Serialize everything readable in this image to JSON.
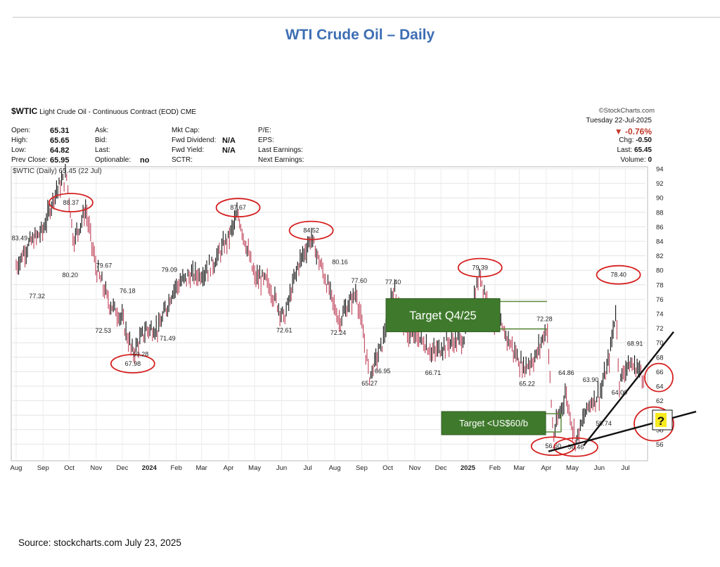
{
  "page_title": "WTI Crude Oil – Daily",
  "source": "Source: stockcharts.com July 23, 2025",
  "header": {
    "symbol": "$WTIC",
    "name": "Light Crude Oil - Continuous Contract (EOD)",
    "exchange": "CME",
    "brand": "©StockCharts.com",
    "date": "Tuesday 22-Jul-2025",
    "change_pct": "▼ -0.76%",
    "col1": [
      [
        "Open:",
        "65.31"
      ],
      [
        "High:",
        "65.65"
      ],
      [
        "Low:",
        "64.82"
      ],
      [
        "Prev Close:",
        "65.95"
      ]
    ],
    "col2": [
      [
        "Ask:",
        ""
      ],
      [
        "Bid:",
        ""
      ],
      [
        "Last:",
        ""
      ],
      [
        "Optionable:",
        "no"
      ]
    ],
    "col3": [
      [
        "Mkt Cap:",
        ""
      ],
      [
        "Fwd Dividend:",
        "N/A"
      ],
      [
        "Fwd Yield:",
        "N/A"
      ],
      [
        "SCTR:",
        ""
      ]
    ],
    "col4": [
      [
        "P/E:",
        ""
      ],
      [
        "EPS:",
        ""
      ],
      [
        "Last Earnings:",
        ""
      ],
      [
        "Next Earnings:",
        ""
      ]
    ],
    "col5": [
      [
        "Chg:",
        "-0.50"
      ],
      [
        "Last:",
        "65.45"
      ],
      [
        "Volume:",
        "0"
      ]
    ],
    "legend": "$WTIC (Daily) 65.45 (22 Jul)"
  },
  "colors": {
    "up": "#111111",
    "down": "#c0435a",
    "circle": "#d62020",
    "box_green": "#3f7a2c",
    "title_blue": "#3d6fb3",
    "question_fill": "#f7ea1f"
  },
  "chart_data": {
    "type": "line",
    "x_type": "date",
    "x": [
      "2023-08-01",
      "2023-08-15",
      "2023-09-01",
      "2023-09-15",
      "2023-09-28",
      "2023-10-06",
      "2023-10-20",
      "2023-11-01",
      "2023-11-16",
      "2023-11-30",
      "2023-12-13",
      "2023-12-28",
      "2024-01-12",
      "2024-01-29",
      "2024-02-14",
      "2024-03-01",
      "2024-03-15",
      "2024-04-01",
      "2024-04-12",
      "2024-05-01",
      "2024-05-15",
      "2024-06-04",
      "2024-06-20",
      "2024-07-05",
      "2024-07-25",
      "2024-08-06",
      "2024-08-26",
      "2024-09-10",
      "2024-09-25",
      "2024-10-07",
      "2024-10-25",
      "2024-11-08",
      "2024-11-22",
      "2024-12-09",
      "2024-12-27",
      "2025-01-15",
      "2025-01-28",
      "2025-02-14",
      "2025-03-05",
      "2025-03-20",
      "2025-04-02",
      "2025-04-09",
      "2025-04-23",
      "2025-05-05",
      "2025-05-20",
      "2025-06-02",
      "2025-06-12",
      "2025-06-20",
      "2025-06-24",
      "2025-07-03",
      "2025-07-15",
      "2025-07-22"
    ],
    "y": [
      80.5,
      83.5,
      85.5,
      90.8,
      93.0,
      84.0,
      88.4,
      80.2,
      75.5,
      73.5,
      68.5,
      71.8,
      72.0,
      77.5,
      79.1,
      79.5,
      81.0,
      84.5,
      87.7,
      79.0,
      78.5,
      73.3,
      80.7,
      84.5,
      77.5,
      73.0,
      77.0,
      65.3,
      70.0,
      77.5,
      71.0,
      70.5,
      68.5,
      70.0,
      70.5,
      79.4,
      73.5,
      71.0,
      66.5,
      68.0,
      72.3,
      57.0,
      63.0,
      56.5,
      61.5,
      63.0,
      67.5,
      74.5,
      64.5,
      67.0,
      66.5,
      65.45
    ],
    "ylim": [
      54,
      94
    ],
    "y_ticks": [
      56,
      58,
      60,
      62,
      64,
      66,
      68,
      70,
      72,
      74,
      76,
      78,
      80,
      82,
      84,
      86,
      88,
      90,
      92,
      94
    ],
    "x_tick_labels": [
      "Aug",
      "Sep",
      "Oct",
      "Nov",
      "Dec",
      "2024",
      "Feb",
      "Mar",
      "Apr",
      "May",
      "Jun",
      "Jul",
      "Aug",
      "Sep",
      "Oct",
      "Nov",
      "Dec",
      "2025",
      "Feb",
      "Mar",
      "Apr",
      "May",
      "Jun",
      "Jul"
    ],
    "x_tick_dates": [
      "2023-08-01",
      "2023-09-01",
      "2023-10-01",
      "2023-11-01",
      "2023-12-01",
      "2024-01-01",
      "2024-02-01",
      "2024-03-01",
      "2024-04-01",
      "2024-05-01",
      "2024-06-01",
      "2024-07-01",
      "2024-08-01",
      "2024-09-01",
      "2024-10-01",
      "2024-11-01",
      "2024-12-01",
      "2025-01-01",
      "2025-02-01",
      "2025-03-01",
      "2025-04-01",
      "2025-05-01",
      "2025-06-01",
      "2025-07-01"
    ],
    "bold_tick_labels": [
      "2024",
      "2025"
    ],
    "annotations": [
      {
        "date": "2023-08-05",
        "value": 83.49,
        "text": "83.49"
      },
      {
        "date": "2023-08-25",
        "value": 77.32,
        "text": "77.32"
      },
      {
        "date": "2023-10-03",
        "value": 88.37,
        "text": "88.37"
      },
      {
        "date": "2023-10-02",
        "value": 80.2,
        "text": "80.20"
      },
      {
        "date": "2023-11-10",
        "value": 79.67,
        "text": "79.67"
      },
      {
        "date": "2023-11-09",
        "value": 72.53,
        "text": "72.53"
      },
      {
        "date": "2023-12-07",
        "value": 76.18,
        "text": "76.18"
      },
      {
        "date": "2023-12-13",
        "value": 67.98,
        "text": "67.98"
      },
      {
        "date": "2023-12-22",
        "value": 69.28,
        "text": "69.28"
      },
      {
        "date": "2024-01-22",
        "value": 71.49,
        "text": "71.49"
      },
      {
        "date": "2024-01-24",
        "value": 79.09,
        "text": "79.09"
      },
      {
        "date": "2024-04-12",
        "value": 87.67,
        "text": "87.67"
      },
      {
        "date": "2024-06-04",
        "value": 72.61,
        "text": "72.61"
      },
      {
        "date": "2024-07-05",
        "value": 84.52,
        "text": "84.52"
      },
      {
        "date": "2024-08-05",
        "value": 72.24,
        "text": "72.24"
      },
      {
        "date": "2024-08-07",
        "value": 80.16,
        "text": "80.16"
      },
      {
        "date": "2024-08-29",
        "value": 77.6,
        "text": "77.60"
      },
      {
        "date": "2024-09-10",
        "value": 65.27,
        "text": "65.27"
      },
      {
        "date": "2024-09-25",
        "value": 66.95,
        "text": "66.95"
      },
      {
        "date": "2024-10-07",
        "value": 77.4,
        "text": "77.40"
      },
      {
        "date": "2024-11-22",
        "value": 66.71,
        "text": "66.71"
      },
      {
        "date": "2025-01-15",
        "value": 79.39,
        "text": "79.39"
      },
      {
        "date": "2025-03-30",
        "value": 72.28,
        "text": "72.28"
      },
      {
        "date": "2025-03-10",
        "value": 65.22,
        "text": "65.22"
      },
      {
        "date": "2025-04-09",
        "value": 56.6,
        "text": "56.60"
      },
      {
        "date": "2025-04-24",
        "value": 64.86,
        "text": "64.86"
      },
      {
        "date": "2025-05-05",
        "value": 56.46,
        "text": "56.46"
      },
      {
        "date": "2025-05-22",
        "value": 63.9,
        "text": "63.90"
      },
      {
        "date": "2025-06-06",
        "value": 59.74,
        "text": "59.74"
      },
      {
        "date": "2025-06-23",
        "value": 78.4,
        "text": "78.40"
      },
      {
        "date": "2025-06-24",
        "value": 64.0,
        "text": "64.00"
      },
      {
        "date": "2025-07-12",
        "value": 68.91,
        "text": "68.91"
      }
    ],
    "circled": [
      "88.37",
      "67.98",
      "87.67",
      "84.52",
      "79.39",
      "78.40",
      "56.60",
      "56.46"
    ],
    "target_boxes": [
      {
        "text": "Target Q4/25",
        "y_top": 75.7,
        "y_bottom": 71.9
      },
      {
        "text": "Target <US$60/b",
        "y_top": 58.0,
        "y_bottom": 56.3
      }
    ],
    "question_mark": "?"
  }
}
